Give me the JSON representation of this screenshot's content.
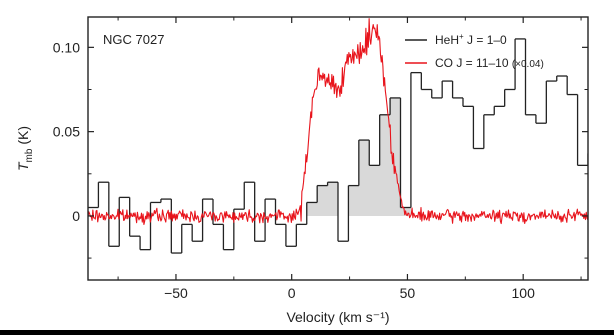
{
  "chart_data": {
    "type": "line",
    "target_label": "NGC 7027",
    "xlabel": "Velocity (km s⁻¹)",
    "ylabel_main": "T",
    "ylabel_sub": "mb",
    "ylabel_unit": " (K)",
    "xlim": [
      -88,
      128
    ],
    "ylim": [
      -0.038,
      0.118
    ],
    "x_ticks": [
      -50,
      0,
      50,
      100
    ],
    "x_tick_labels": [
      "−50",
      "0",
      "50",
      "100"
    ],
    "y_ticks": [
      0,
      0.05,
      0.1
    ],
    "y_tick_labels": [
      "0",
      "0.05",
      "0.10"
    ],
    "grid": false,
    "legend_position": "top-right",
    "colors": {
      "heh": "#222222",
      "co": "#e8141c",
      "fill": "#d9d9d9",
      "frame": "#222222"
    },
    "legend": [
      {
        "pre": "HeH",
        "sup": "+",
        "post": " J = 1–0",
        "color": "#222222"
      },
      {
        "pre": "CO J = 11–10 ",
        "small": "(×0.04)",
        "color": "#e8141c"
      }
    ],
    "series": [
      {
        "name": "HeH⁺ J = 1–0",
        "style": "histogram",
        "bin_width": 4.5,
        "x_start": -88,
        "values": [
          0.005,
          0.02,
          -0.018,
          0.011,
          -0.012,
          -0.02,
          0.008,
          0.01,
          -0.022,
          -0.005,
          -0.015,
          0.01,
          -0.005,
          -0.02,
          0.004,
          0.02,
          -0.015,
          0.01,
          -0.005,
          -0.018,
          -0.005,
          0.008,
          0.018,
          0.02,
          -0.015,
          0.018,
          0.045,
          0.03,
          0.06,
          0.07,
          0.005,
          0.085,
          0.075,
          0.07,
          0.08,
          0.07,
          0.065,
          0.04,
          0.06,
          0.065,
          0.075,
          0.105,
          0.06,
          0.055,
          0.08,
          0.083,
          0.072,
          0.03,
          0.037,
          0.01,
          -0.005,
          0.005,
          -0.02,
          -0.008,
          -0.025,
          0.0,
          -0.005,
          -0.02,
          0.015,
          0.005,
          -0.01,
          0.01,
          -0.03,
          0.005,
          0.01,
          -0.005,
          -0.02,
          -0.01,
          -0.012,
          0.015,
          -0.008,
          0.0,
          0.012,
          0.028,
          -0.012,
          0.015,
          -0.02,
          0.004,
          0.018,
          -0.01,
          0.02,
          -0.025,
          -0.03,
          -0.005,
          0.015,
          -0.005,
          0.012,
          -0.025,
          -0.03,
          -0.012,
          0.025,
          -0.005,
          -0.01,
          0.002,
          0.01,
          0.018,
          -0.002,
          -0.032,
          -0.008,
          0.012,
          -0.025,
          0.032,
          0.004,
          -0.012,
          -0.008,
          0.012,
          -0.015,
          0.018,
          0.035,
          0.028,
          -0.005,
          0.015,
          -0.01,
          0.01,
          0.016,
          -0.008,
          0.015,
          0.01,
          0.005,
          0.025,
          0.01,
          0.005,
          -0.008,
          0.008,
          -0.008,
          0.01,
          0.005,
          -0.004,
          0.008,
          -0.004,
          -0.012,
          -0.018,
          0.01,
          -0.006,
          0.018,
          0.02
        ]
      },
      {
        "name": "CO J = 11–10 (×0.04)",
        "style": "line",
        "profile": {
          "x": [
            -88,
            -20,
            2,
            4,
            5,
            6,
            7,
            8,
            10,
            12,
            14,
            16,
            18,
            20,
            22,
            24,
            26,
            28,
            30,
            32,
            34,
            36,
            37,
            38,
            39,
            40,
            41,
            42,
            43,
            44,
            45,
            46,
            47,
            48,
            50,
            128
          ],
          "y": [
            0,
            0,
            0,
            0.004,
            0.02,
            0.035,
            0.042,
            0.055,
            0.075,
            0.083,
            0.08,
            0.08,
            0.078,
            0.075,
            0.085,
            0.089,
            0.092,
            0.095,
            0.098,
            0.103,
            0.108,
            0.11,
            0.113,
            0.105,
            0.09,
            0.08,
            0.07,
            0.055,
            0.045,
            0.035,
            0.026,
            0.018,
            0.01,
            0.005,
            0,
            0
          ]
        },
        "noise_rms": 0.0018
      }
    ]
  }
}
